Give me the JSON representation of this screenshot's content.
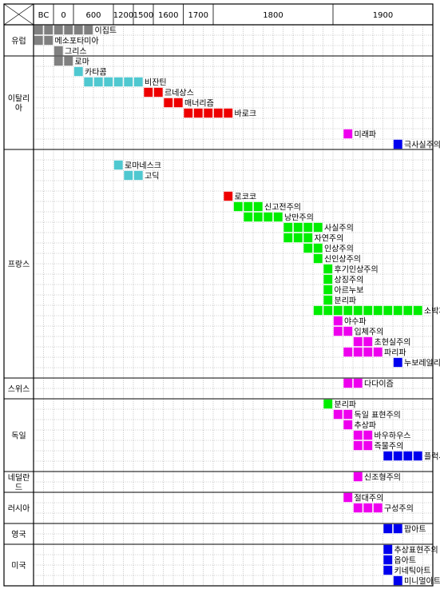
{
  "colors": {
    "gray": "#808080",
    "cyan": "#4fc8d0",
    "red": "#ee0000",
    "green": "#00ee00",
    "magenta": "#ee00ee",
    "blue": "#0000ee"
  },
  "chart_data": {
    "type": "table",
    "timeline_header": [
      "BC",
      "0",
      "600",
      "1200",
      "1500",
      "1600",
      "1700",
      "1800",
      "1900"
    ],
    "regions": [
      {
        "name": "유럽",
        "start_row": 0,
        "end_row": 3
      },
      {
        "name": "이탈리아",
        "start_row": 3,
        "end_row": 12
      },
      {
        "name": "프랑스",
        "start_row": 12,
        "end_row": 34
      },
      {
        "name": "스위스",
        "start_row": 34,
        "end_row": 36
      },
      {
        "name": "독일",
        "start_row": 36,
        "end_row": 43
      },
      {
        "name": "네덜란드",
        "start_row": 43,
        "end_row": 45
      },
      {
        "name": "러시아",
        "start_row": 45,
        "end_row": 48
      },
      {
        "name": "영국",
        "start_row": 48,
        "end_row": 50
      },
      {
        "name": "미국",
        "start_row": 50,
        "end_row": 54
      }
    ],
    "movements": [
      {
        "row": 0,
        "label": "이집트",
        "color": "gray",
        "cells": [
          [
            0,
            6
          ]
        ]
      },
      {
        "row": 1,
        "label": "메소포타미아",
        "color": "gray",
        "cells": [
          [
            0,
            2
          ]
        ]
      },
      {
        "row": 2,
        "label": "그리스",
        "color": "gray",
        "cells": [
          [
            2,
            3
          ]
        ]
      },
      {
        "row": 3,
        "label": "로마",
        "color": "gray",
        "cells": [
          [
            2,
            4
          ]
        ]
      },
      {
        "row": 4,
        "label": "카타콤",
        "color": "cyan",
        "cells": [
          [
            4,
            5
          ]
        ]
      },
      {
        "row": 5,
        "label": "비잔틴",
        "color": "cyan",
        "cells": [
          [
            5,
            11
          ]
        ]
      },
      {
        "row": 6,
        "label": "르네상스",
        "color": "red",
        "cells": [
          [
            11,
            13
          ]
        ]
      },
      {
        "row": 7,
        "label": "매너리즘",
        "color": "red",
        "cells": [
          [
            13,
            15
          ]
        ]
      },
      {
        "row": 8,
        "label": "바로크",
        "color": "red",
        "cells": [
          [
            15,
            20
          ]
        ]
      },
      {
        "row": 10,
        "label": "미래파",
        "color": "magenta",
        "cells": [
          [
            31,
            32
          ]
        ]
      },
      {
        "row": 11,
        "label": "극사실주의",
        "color": "blue",
        "cells": [
          [
            36,
            37
          ]
        ]
      },
      {
        "row": 13,
        "label": "로마네스크",
        "color": "cyan",
        "cells": [
          [
            8,
            9
          ]
        ]
      },
      {
        "row": 14,
        "label": "고딕",
        "color": "cyan",
        "cells": [
          [
            9,
            11
          ]
        ]
      },
      {
        "row": 16,
        "label": "로코코",
        "color": "red",
        "cells": [
          [
            19,
            20
          ]
        ]
      },
      {
        "row": 17,
        "label": "신고전주의",
        "color": "green",
        "cells": [
          [
            20,
            23
          ]
        ]
      },
      {
        "row": 18,
        "label": "낭만주의",
        "color": "green",
        "cells": [
          [
            21,
            25
          ]
        ]
      },
      {
        "row": 19,
        "label": "사실주의",
        "color": "green",
        "cells": [
          [
            25,
            29
          ]
        ]
      },
      {
        "row": 20,
        "label": "자연주의",
        "color": "green",
        "cells": [
          [
            25,
            28
          ]
        ]
      },
      {
        "row": 21,
        "label": "인상주의",
        "color": "green",
        "cells": [
          [
            27,
            29
          ]
        ]
      },
      {
        "row": 22,
        "label": "신인상주의",
        "color": "green",
        "cells": [
          [
            28,
            29
          ]
        ]
      },
      {
        "row": 23,
        "label": "후기인상주의",
        "color": "green",
        "cells": [
          [
            29,
            30
          ]
        ]
      },
      {
        "row": 24,
        "label": "상징주의",
        "color": "green",
        "cells": [
          [
            29,
            30
          ]
        ]
      },
      {
        "row": 25,
        "label": "아르누보",
        "color": "green",
        "cells": [
          [
            29,
            30
          ]
        ]
      },
      {
        "row": 26,
        "label": "분리파",
        "color": "green",
        "cells": [
          [
            29,
            30
          ]
        ]
      },
      {
        "row": 27,
        "label": "소박파",
        "color": "green",
        "cells": [
          [
            28,
            39
          ]
        ]
      },
      {
        "row": 28,
        "label": "야수파",
        "color": "magenta",
        "cells": [
          [
            30,
            31
          ]
        ]
      },
      {
        "row": 29,
        "label": "입체주의",
        "color": "magenta",
        "cells": [
          [
            30,
            32
          ]
        ]
      },
      {
        "row": 30,
        "label": "초현실주의",
        "color": "magenta",
        "cells": [
          [
            32,
            34
          ]
        ]
      },
      {
        "row": 31,
        "label": "파리파",
        "color": "magenta",
        "cells": [
          [
            31,
            35
          ]
        ]
      },
      {
        "row": 32,
        "label": "누보레알리즘",
        "color": "blue",
        "cells": [
          [
            36,
            37
          ]
        ]
      },
      {
        "row": 34,
        "label": "다다이즘",
        "color": "magenta",
        "cells": [
          [
            31,
            33
          ]
        ]
      },
      {
        "row": 36,
        "label": "분리파",
        "color": "green",
        "cells": [
          [
            29,
            30
          ]
        ]
      },
      {
        "row": 37,
        "label": "독일 표현주의",
        "color": "magenta",
        "cells": [
          [
            30,
            32
          ]
        ]
      },
      {
        "row": 38,
        "label": "추상파",
        "color": "magenta",
        "cells": [
          [
            31,
            32
          ]
        ]
      },
      {
        "row": 39,
        "label": "바우하우스",
        "color": "magenta",
        "cells": [
          [
            32,
            34
          ]
        ]
      },
      {
        "row": 40,
        "label": "즉물주의",
        "color": "magenta",
        "cells": [
          [
            32,
            34
          ]
        ]
      },
      {
        "row": 41,
        "label": "플럭서스",
        "color": "blue",
        "cells": [
          [
            35,
            39
          ]
        ]
      },
      {
        "row": 43,
        "label": "신조형주의",
        "color": "magenta",
        "cells": [
          [
            32,
            33
          ]
        ]
      },
      {
        "row": 45,
        "label": "절대주의",
        "color": "magenta",
        "cells": [
          [
            31,
            32
          ]
        ]
      },
      {
        "row": 46,
        "label": "구성주의",
        "color": "magenta",
        "cells": [
          [
            32,
            35
          ]
        ]
      },
      {
        "row": 48,
        "label": "팝아트",
        "color": "blue",
        "cells": [
          [
            35,
            37
          ]
        ]
      },
      {
        "row": 50,
        "label": "추상표현주의",
        "color": "blue",
        "cells": [
          [
            35,
            36
          ]
        ]
      },
      {
        "row": 51,
        "label": "옵아트",
        "color": "blue",
        "cells": [
          [
            35,
            36
          ]
        ]
      },
      {
        "row": 52,
        "label": "키네틱아트",
        "color": "blue",
        "cells": [
          [
            35,
            36
          ]
        ]
      },
      {
        "row": 53,
        "label": "미니멀아트",
        "color": "blue",
        "cells": [
          [
            36,
            37
          ]
        ]
      }
    ]
  }
}
